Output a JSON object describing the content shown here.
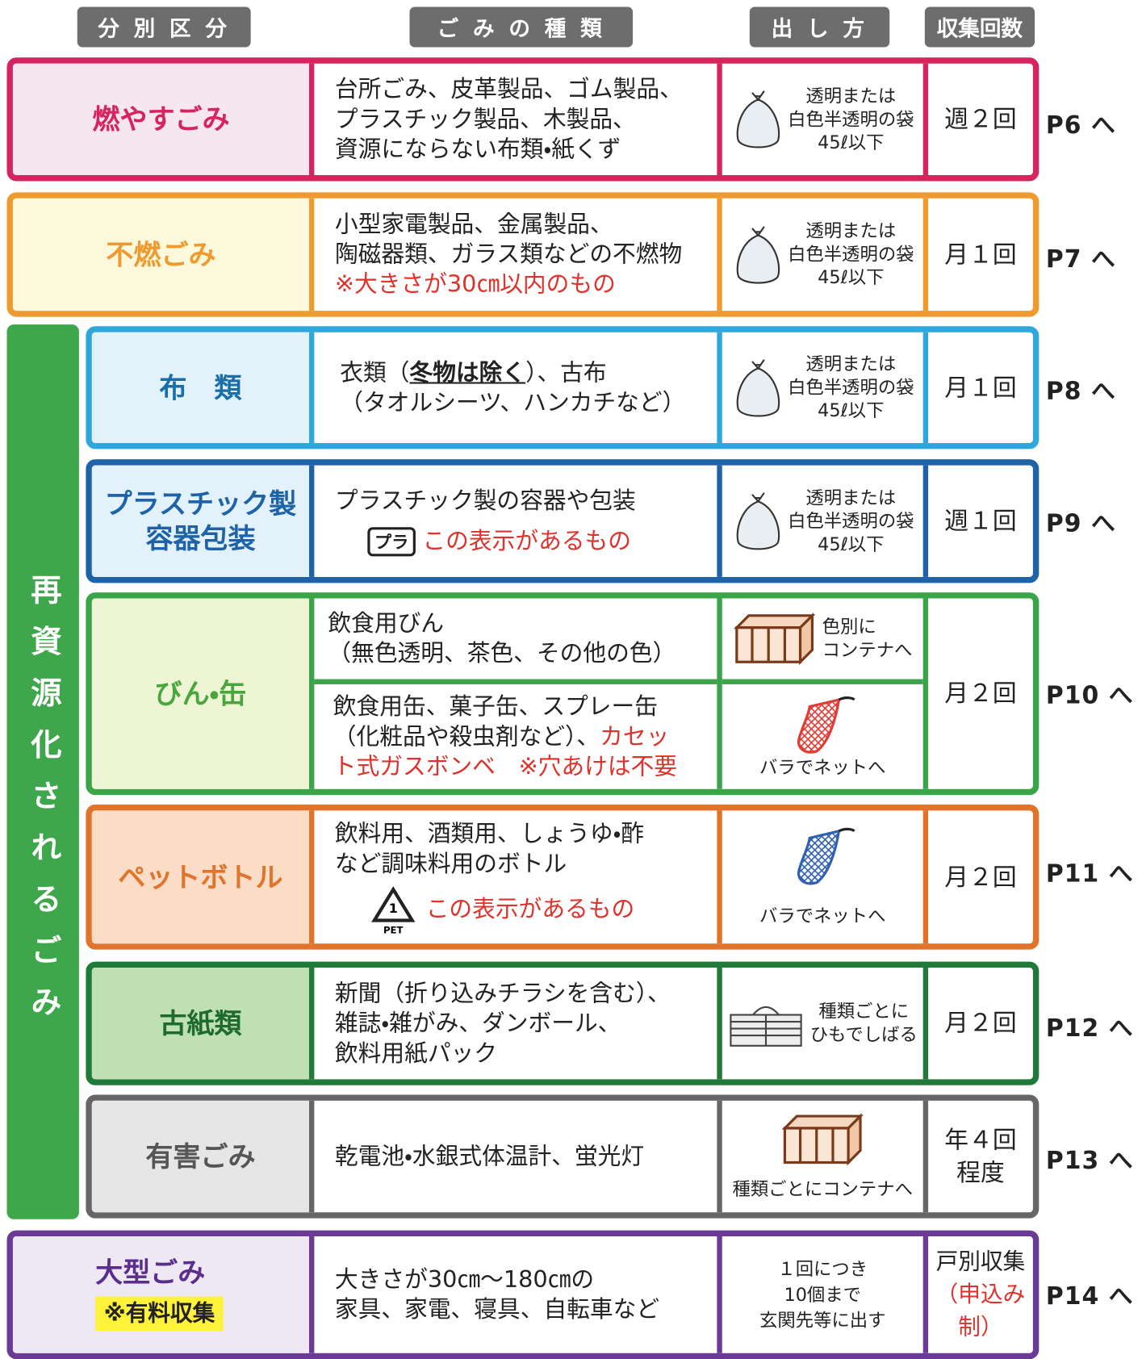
{
  "headers": [
    "分 別 区 分",
    "ご み の 種 類",
    "出 し 方",
    "収集回数"
  ],
  "side_label": "再資源化されるごみ",
  "rows": [
    {
      "category": "燃やすごみ",
      "items": [
        "台所ごみ、皮革製品、ゴム製品、",
        "プラスチック製品、木製品、",
        "資源にならない布類・紙くず"
      ],
      "method": [
        "透明または",
        "白色半透明の袋",
        "45ℓ以下"
      ],
      "frequency": "週２回",
      "page": "P6 へ"
    },
    {
      "category": "不燃ごみ",
      "items": [
        "小型家電製品、金属製品、",
        "陶磁器類、ガラス類などの不燃物"
      ],
      "note": "※大きさが30㎝以内のもの",
      "method": [
        "透明または",
        "白色半透明の袋",
        "45ℓ以下"
      ],
      "frequency": "月１回",
      "page": "P7 へ"
    },
    {
      "category": "布　類",
      "items": [
        "衣類（",
        "冬物は除く",
        "）、古布",
        "（タオルシーツ、ハンカチなど）"
      ],
      "method": [
        "透明または",
        "白色半透明の袋",
        "45ℓ以下"
      ],
      "frequency": "月１回",
      "page": "P8 へ"
    },
    {
      "category": "プラスチック製\n容器包装",
      "items": [
        "プラスチック製の容器や包装"
      ],
      "mark": "プラ",
      "note": "この表示があるもの",
      "method": [
        "透明または",
        "白色半透明の袋",
        "45ℓ以下"
      ],
      "frequency": "週１回",
      "page": "P9 へ"
    },
    {
      "category": "びん・缶",
      "parts": [
        {
          "items": [
            "飲食用びん",
            "（無色透明、茶色、その他の色）"
          ],
          "method": [
            "色別に",
            "コンテナへ"
          ]
        },
        {
          "items": [
            "飲食用缶、菓子缶、スプレー缶",
            "（化粧品や殺虫剤など）、",
            "カセッ",
            "ト式ガスボンベ　※穴あけは不要"
          ],
          "method": [
            "バラでネットへ"
          ]
        }
      ],
      "frequency": "月２回",
      "page": "P10 へ"
    },
    {
      "category": "ペットボトル",
      "items": [
        "飲料用、酒類用、しょうゆ・酢",
        "など調味料用のボトル"
      ],
      "mark": [
        "1",
        "PET"
      ],
      "note": "この表示があるもの",
      "method": [
        "バラでネットへ"
      ],
      "frequency": "月２回",
      "page": "P11 へ"
    },
    {
      "category": "古紙類",
      "items": [
        "新聞（折り込みチラシを含む）、",
        "雑誌・雑がみ、ダンボール、",
        "飲料用紙パック"
      ],
      "method": [
        "種類ごとに",
        "ひもでしばる"
      ],
      "frequency": "月２回",
      "page": "P12 へ"
    },
    {
      "category": "有害ごみ",
      "items": [
        "乾電池・水銀式体温計、蛍光灯"
      ],
      "method": [
        "種類ごとにコンテナへ"
      ],
      "frequency": [
        "年４回",
        "程度"
      ],
      "page": "P13 へ"
    },
    {
      "category": "大型ごみ",
      "note": "※有料収集",
      "items": [
        "大きさが30㎝～180㎝の",
        "家具、家電、寝具、自転車など"
      ],
      "method": [
        "１回につき",
        "10個まで",
        "玄関先等に出す"
      ],
      "frequency": [
        "戸別収集",
        "（申込み制）"
      ],
      "page": "P14 へ"
    }
  ]
}
